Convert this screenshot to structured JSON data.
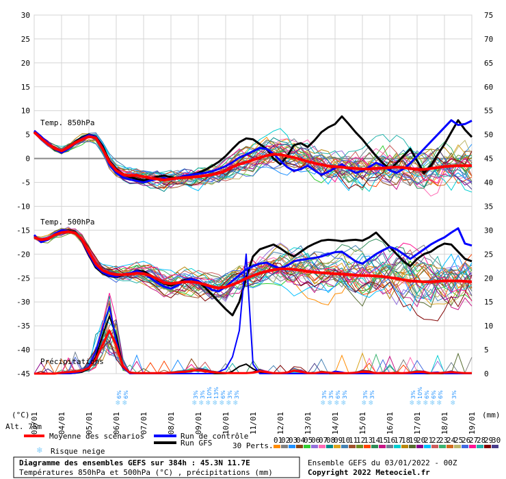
{
  "chart_data": {
    "type": "line",
    "left_axis": {
      "label": "(°C)",
      "ticks": [
        30,
        25,
        20,
        15,
        10,
        5,
        0,
        -5,
        -10,
        -15,
        -20,
        -25,
        -30,
        -35,
        -40,
        -45
      ],
      "range": [
        -45,
        30
      ]
    },
    "right_axis": {
      "label": "(mm)",
      "ticks": [
        75,
        70,
        65,
        60,
        55,
        50,
        45,
        40,
        35,
        30,
        25,
        20,
        15,
        10,
        5,
        0
      ],
      "range": [
        0,
        75
      ]
    },
    "x_ticks": [
      "03/01",
      "04/01",
      "05/01",
      "06/01",
      "07/01",
      "08/01",
      "09/01",
      "10/01",
      "11/01",
      "12/01",
      "13/01",
      "14/01",
      "15/01",
      "16/01",
      "17/01",
      "18/01",
      "19/01"
    ],
    "panel_labels": [
      "Temp. 850hPa",
      "Temp. 500hPa",
      "Précipitations"
    ],
    "alt_label": "Alt. 75m",
    "snow_risk": [
      {
        "x": 3.1,
        "pct": "6%"
      },
      {
        "x": 3.35,
        "pct": "6%"
      },
      {
        "x": 5.9,
        "pct": "3%"
      },
      {
        "x": 6.15,
        "pct": "3%"
      },
      {
        "x": 6.4,
        "pct": "10%"
      },
      {
        "x": 6.65,
        "pct": "13%"
      },
      {
        "x": 6.9,
        "pct": "6%"
      },
      {
        "x": 7.15,
        "pct": "3%"
      },
      {
        "x": 7.4,
        "pct": "3%"
      },
      {
        "x": 10.6,
        "pct": "3%"
      },
      {
        "x": 10.85,
        "pct": "3%"
      },
      {
        "x": 11.1,
        "pct": "6%"
      },
      {
        "x": 11.35,
        "pct": "3%"
      },
      {
        "x": 12.1,
        "pct": "3%"
      },
      {
        "x": 12.35,
        "pct": "3%"
      },
      {
        "x": 13.85,
        "pct": "3%"
      },
      {
        "x": 14.1,
        "pct": "10%"
      },
      {
        "x": 14.35,
        "pct": "6%"
      },
      {
        "x": 14.6,
        "pct": "6%"
      },
      {
        "x": 14.85,
        "pct": "6%"
      },
      {
        "x": 15.35,
        "pct": "3%"
      }
    ],
    "mean_t850": [
      5.5,
      4.2,
      3.0,
      2.1,
      1.6,
      2.3,
      3.3,
      4.0,
      4.6,
      4.3,
      2.0,
      -0.8,
      -2.5,
      -3.4,
      -3.6,
      -3.5,
      -3.8,
      -4.1,
      -4.3,
      -4.5,
      -4.3,
      -4.1,
      -4.0,
      -3.9,
      -3.8,
      -3.6,
      -3.4,
      -3.1,
      -2.6,
      -1.8,
      -1.2,
      -0.8,
      -0.3,
      0.2,
      0.6,
      0.9,
      0.8,
      0.5,
      0.2,
      -0.2,
      -0.6,
      -1.0,
      -1.3,
      -1.6,
      -1.7,
      -1.8,
      -2.0,
      -2.1,
      -2.2,
      -2.2,
      -2.1,
      -2.0,
      -1.9,
      -1.8,
      -1.9,
      -2.1,
      -2.3,
      -2.3,
      -2.1,
      -1.9,
      -1.7,
      -1.6,
      -1.5,
      -1.5,
      -1.5
    ],
    "control_t850": [
      5.8,
      4.6,
      3.2,
      2.0,
      1.2,
      2.0,
      3.2,
      4.2,
      4.9,
      4.5,
      2.2,
      -1.2,
      -3.0,
      -4.0,
      -4.4,
      -4.7,
      -5.0,
      -4.6,
      -4.3,
      -4.1,
      -4.4,
      -4.0,
      -3.6,
      -3.4,
      -3.2,
      -3.0,
      -2.7,
      -2.2,
      -1.6,
      -0.8,
      0.2,
      0.8,
      1.5,
      2.2,
      2.0,
      1.0,
      -0.5,
      -1.8,
      -2.6,
      -2.2,
      -1.5,
      -2.5,
      -3.4,
      -2.8,
      -2.0,
      -1.2,
      -2.2,
      -3.0,
      -2.6,
      -1.8,
      -0.9,
      -1.5,
      -2.5,
      -3.0,
      -2.2,
      -1.0,
      0.5,
      2.0,
      3.5,
      5.0,
      6.5,
      8.0,
      7.0,
      7.2,
      7.9
    ],
    "gfs_t850": [
      5.6,
      4.4,
      3.1,
      1.9,
      1.4,
      2.3,
      3.5,
      4.4,
      5.0,
      4.6,
      2.6,
      -0.5,
      -2.2,
      -3.3,
      -3.9,
      -4.3,
      -4.6,
      -4.2,
      -3.8,
      -3.6,
      -3.9,
      -4.2,
      -3.8,
      -3.4,
      -3.0,
      -2.4,
      -1.6,
      -0.7,
      0.5,
      2.0,
      3.4,
      4.2,
      4.0,
      3.0,
      2.0,
      0.0,
      -1.2,
      0.5,
      2.8,
      3.2,
      2.4,
      3.8,
      5.5,
      6.5,
      7.2,
      8.8,
      7.2,
      5.5,
      4.0,
      2.2,
      0.5,
      -1.0,
      -2.2,
      -1.0,
      0.5,
      2.0,
      -0.5,
      -3.0,
      -1.5,
      0.8,
      3.0,
      5.5,
      8.0,
      6.0,
      4.5
    ],
    "mean_t500": [
      -16.5,
      -17.0,
      -16.8,
      -16.0,
      -15.5,
      -15.3,
      -15.6,
      -17.0,
      -19.5,
      -22.0,
      -23.4,
      -24.0,
      -24.3,
      -24.3,
      -24.2,
      -24.0,
      -24.1,
      -24.5,
      -25.2,
      -26.0,
      -26.2,
      -26.0,
      -25.8,
      -25.8,
      -26.0,
      -26.4,
      -26.8,
      -27.1,
      -26.9,
      -26.4,
      -25.8,
      -25.1,
      -24.5,
      -24.0,
      -23.6,
      -23.3,
      -23.1,
      -23.1,
      -23.2,
      -23.4,
      -23.6,
      -23.8,
      -23.9,
      -24.0,
      -24.1,
      -24.2,
      -24.3,
      -24.4,
      -24.5,
      -24.5,
      -24.6,
      -24.7,
      -24.9,
      -25.1,
      -25.4,
      -25.6,
      -25.7,
      -25.8,
      -25.8,
      -25.7,
      -25.6,
      -25.6,
      -25.6,
      -25.7,
      -25.8
    ],
    "control_t500": [
      -16.0,
      -17.5,
      -17.0,
      -15.8,
      -15.0,
      -15.2,
      -15.5,
      -17.2,
      -20.0,
      -22.5,
      -23.8,
      -24.5,
      -24.7,
      -24.2,
      -24.0,
      -23.5,
      -24.0,
      -25.0,
      -26.0,
      -26.8,
      -27.2,
      -26.5,
      -25.6,
      -25.2,
      -25.6,
      -26.5,
      -27.5,
      -27.8,
      -26.8,
      -25.6,
      -24.4,
      -23.2,
      -22.5,
      -22.0,
      -21.8,
      -22.5,
      -23.0,
      -22.4,
      -21.5,
      -21.2,
      -21.0,
      -20.8,
      -20.5,
      -20.0,
      -19.6,
      -19.5,
      -20.5,
      -21.5,
      -22.0,
      -21.0,
      -20.0,
      -19.2,
      -18.5,
      -19.0,
      -20.0,
      -21.0,
      -20.0,
      -19.0,
      -18.0,
      -17.2,
      -16.5,
      -15.5,
      -14.6,
      -17.8,
      -18.2
    ],
    "gfs_t500": [
      -16.3,
      -17.2,
      -16.9,
      -15.9,
      -15.2,
      -15.1,
      -15.4,
      -17.3,
      -20.2,
      -22.8,
      -24.0,
      -24.6,
      -24.8,
      -24.4,
      -24.1,
      -23.4,
      -23.6,
      -24.4,
      -25.4,
      -26.2,
      -26.6,
      -26.0,
      -25.4,
      -25.2,
      -25.8,
      -27.0,
      -28.5,
      -30.0,
      -31.5,
      -32.8,
      -30.0,
      -25.0,
      -20.5,
      -19.0,
      -18.5,
      -18.0,
      -18.8,
      -19.8,
      -20.5,
      -19.5,
      -18.5,
      -17.8,
      -17.2,
      -17.0,
      -17.1,
      -17.3,
      -17.1,
      -17.0,
      -17.2,
      -16.5,
      -15.5,
      -17.0,
      -18.5,
      -20.0,
      -21.5,
      -22.5,
      -21.0,
      -20.0,
      -19.5,
      -18.5,
      -17.8,
      -18.0,
      -19.5,
      -21.0,
      -21.5
    ],
    "mean_precip": [
      0,
      0,
      0,
      0,
      0.2,
      0.3,
      0.4,
      0.6,
      1.2,
      3.0,
      6.0,
      9.0,
      6.0,
      1.5,
      0.2,
      0.1,
      0.1,
      0.1,
      0.1,
      0.1,
      0.2,
      0.3,
      0.4,
      0.6,
      0.7,
      0.5,
      0.3,
      0.2,
      0.1,
      0.1,
      0.1,
      0.1,
      0.2,
      0.5,
      0.3,
      0.1,
      0.1,
      0.2,
      0.6,
      0.4,
      0.1,
      0.1,
      0.3,
      0.2,
      0.1,
      0.1,
      0.1,
      0.2,
      0.4,
      0.3,
      0.1,
      0.1,
      0.1,
      0.1,
      0.1,
      0.2,
      0.4,
      0.3,
      0.1,
      0.1,
      0.2,
      0.3,
      0.2,
      0.1,
      0.1
    ],
    "control_precip": [
      0,
      0,
      0,
      0,
      0,
      0,
      0.1,
      0.5,
      1.5,
      4.5,
      9.5,
      14.0,
      7.0,
      1.2,
      0,
      0,
      0,
      0,
      0,
      0,
      0,
      0,
      0,
      0,
      0,
      0,
      0,
      0.4,
      1.0,
      3.5,
      9.0,
      25.0,
      2.0,
      0,
      0,
      0,
      0,
      0,
      0,
      0,
      0,
      0,
      0,
      0,
      0.5,
      0.3,
      0,
      0,
      0,
      0,
      0,
      0,
      0,
      0,
      0,
      0,
      0,
      0,
      0.2,
      0.3,
      0,
      0,
      0,
      0,
      0
    ],
    "gfs_precip": [
      0,
      0,
      0,
      0,
      0,
      0,
      0.1,
      0.3,
      1.0,
      3.5,
      8.0,
      12.0,
      8.0,
      1.5,
      0.2,
      0,
      0,
      0,
      0,
      0,
      0,
      0,
      0,
      0,
      0,
      0,
      0,
      0,
      0,
      0.5,
      1.5,
      2.0,
      1.0,
      0.3,
      0,
      0,
      0,
      0,
      0,
      0,
      0,
      0,
      0,
      0,
      0,
      0,
      0,
      0,
      0,
      0,
      0,
      0,
      0,
      0,
      0,
      0,
      0,
      0,
      0,
      0,
      0,
      0,
      0,
      0,
      0
    ],
    "n_steps": 65,
    "members_count": 30
  },
  "legend": {
    "mean": "Moyenne des scénarios",
    "control": "Run de contrôle",
    "gfs": "Run GFS",
    "snow": "Risque neige",
    "perts": "30 Perts.",
    "member_labels": [
      "01",
      "02",
      "03",
      "04",
      "05",
      "06",
      "07",
      "08",
      "09",
      "10",
      "11",
      "12",
      "13",
      "14",
      "15",
      "16",
      "17",
      "18",
      "19",
      "20",
      "21",
      "22",
      "23",
      "24",
      "25",
      "26",
      "27",
      "28",
      "29",
      "30"
    ],
    "member_colors": [
      "#ff8c00",
      "#808080",
      "#1e90ff",
      "#8b4513",
      "#32cd32",
      "#9370db",
      "#ff69b4",
      "#008b8b",
      "#daa520",
      "#4682b4",
      "#a0522d",
      "#6b8e23",
      "#ff4500",
      "#2e8b57",
      "#c71585",
      "#708090",
      "#00ced1",
      "#b8860b",
      "#556b2f",
      "#8b008b",
      "#00bfff",
      "#cd5c5c",
      "#3cb371",
      "#d2691e",
      "#bdb76b",
      "#4169e1",
      "#ff1493",
      "#20b2aa",
      "#800000",
      "#483d8b"
    ]
  },
  "footer": {
    "title": "Diagramme des ensembles GEFS sur 384h : 45.3N 11.7E",
    "subtitle": "Températures 850hPa et 500hPa (°C) , précipitations (mm)",
    "run": "Ensemble GEFS du 03/01/2022 - 00Z",
    "copyright": "Copyright 2022 Meteociel.fr"
  },
  "colors": {
    "mean": "#ff0000",
    "control": "#0000ff",
    "gfs": "#000000",
    "snow": "#87cefa"
  }
}
